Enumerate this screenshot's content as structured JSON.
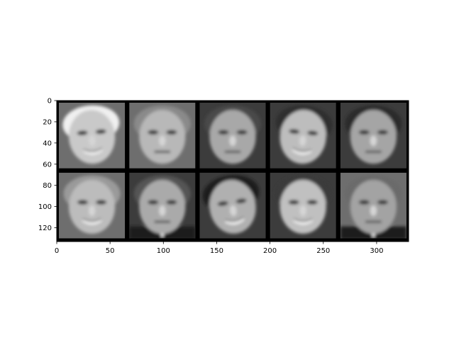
{
  "chart_data": {
    "type": "heatmap",
    "title": "",
    "xlabel": "",
    "ylabel": "",
    "xlim": [
      0,
      330
    ],
    "ylim": [
      0,
      133
    ],
    "y_inverted": true,
    "grid": false,
    "colormap": "gray",
    "x_ticks": [
      0,
      50,
      100,
      150,
      200,
      250,
      300
    ],
    "y_ticks": [
      0,
      20,
      40,
      60,
      80,
      100,
      120
    ],
    "x_tick_labels": [
      "0",
      "50",
      "100",
      "150",
      "200",
      "250",
      "300"
    ],
    "y_tick_labels": [
      "0",
      "20",
      "40",
      "60",
      "80",
      "100",
      "120"
    ],
    "grid_rows": 2,
    "grid_cols": 5,
    "cell_size": 62,
    "cell_gap": 4,
    "tiles": [
      {
        "row": 0,
        "col": 0,
        "subject": "smiling woman, light hair"
      },
      {
        "row": 0,
        "col": 1,
        "subject": "man, short light hair"
      },
      {
        "row": 0,
        "col": 2,
        "subject": "man, short hair"
      },
      {
        "row": 0,
        "col": 3,
        "subject": "smiling man, dark hair"
      },
      {
        "row": 0,
        "col": 4,
        "subject": "woman, dark hair"
      },
      {
        "row": 1,
        "col": 0,
        "subject": "smiling man, bald"
      },
      {
        "row": 1,
        "col": 1,
        "subject": "man in suit"
      },
      {
        "row": 1,
        "col": 2,
        "subject": "man, dark hair, tilted head"
      },
      {
        "row": 1,
        "col": 3,
        "subject": "man, open mouth"
      },
      {
        "row": 1,
        "col": 4,
        "subject": "man in suit, thinning hair"
      }
    ]
  }
}
